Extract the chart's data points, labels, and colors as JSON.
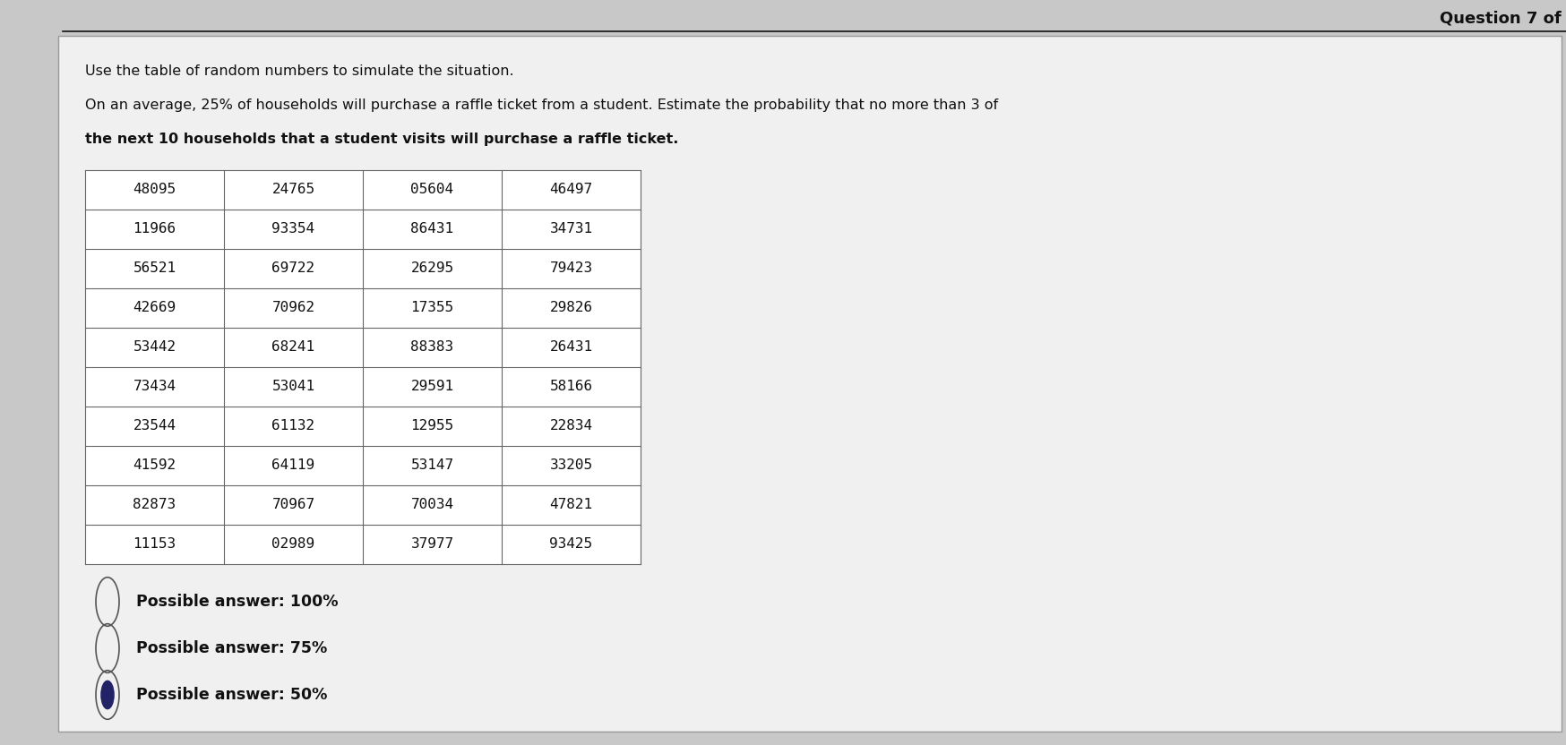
{
  "question_label": "Question 7 of",
  "instruction_line1": "Use the table of random numbers to simulate the situation.",
  "instruction_line2": "On an average, 25% of households will purchase a raffle ticket from a student. Estimate the probability that no more than 3 of",
  "instruction_line3": "the next 10 households that a student visits will purchase a raffle ticket.",
  "table_data": [
    [
      "48095",
      "24765",
      "05604",
      "46497"
    ],
    [
      "11966",
      "93354",
      "86431",
      "34731"
    ],
    [
      "56521",
      "69722",
      "26295",
      "79423"
    ],
    [
      "42669",
      "70962",
      "17355",
      "29826"
    ],
    [
      "53442",
      "68241",
      "88383",
      "26431"
    ],
    [
      "73434",
      "53041",
      "29591",
      "58166"
    ],
    [
      "23544",
      "61132",
      "12955",
      "22834"
    ],
    [
      "41592",
      "64119",
      "53147",
      "33205"
    ],
    [
      "82873",
      "70967",
      "70034",
      "47821"
    ],
    [
      "11153",
      "02989",
      "37977",
      "93425"
    ]
  ],
  "answers": [
    {
      "text": "Possible answer: 100%",
      "selected": false
    },
    {
      "text": "Possible answer: 75%",
      "selected": false
    },
    {
      "text": "Possible answer: 50%",
      "selected": true
    }
  ],
  "bg_color": "#c8c8c8",
  "card_color": "#f0f0f0",
  "table_bg": "#ffffff",
  "text_color": "#111111",
  "grid_color": "#666666",
  "top_bar_color": "#111111"
}
